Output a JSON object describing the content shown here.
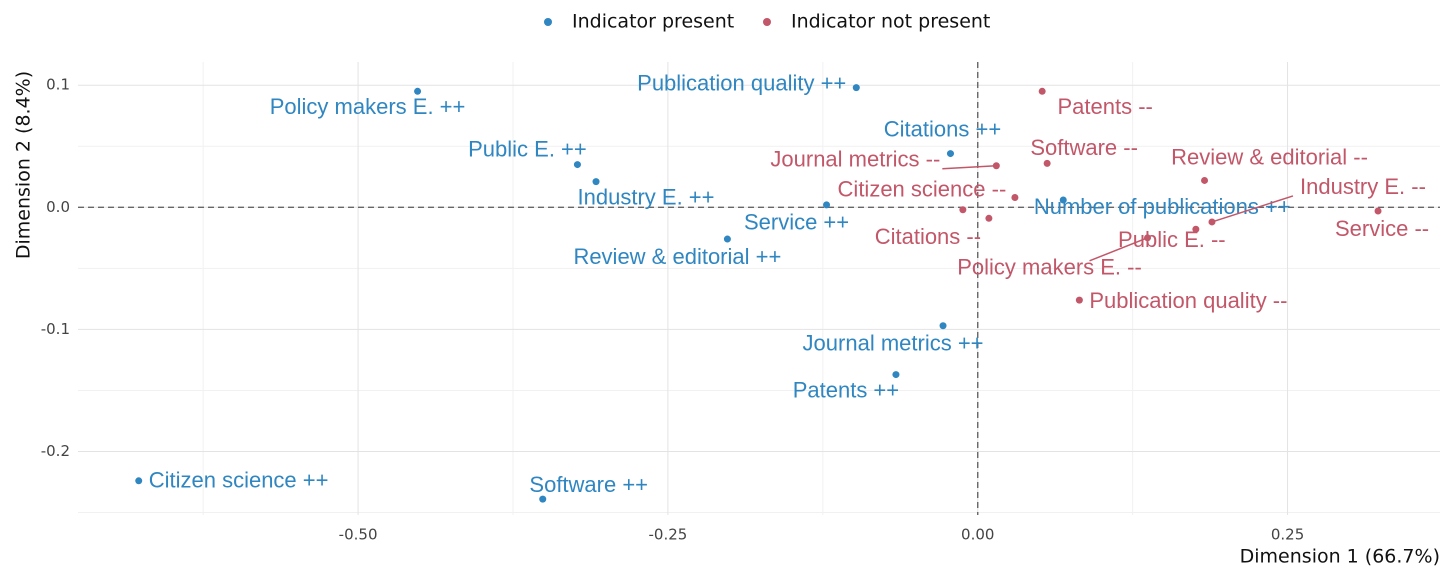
{
  "chart_data": {
    "type": "scatter",
    "x_label": "Dimension 1 (66.7%)",
    "y_label": "Dimension 2 (8.4%)",
    "xlim": [
      -0.726,
      0.373
    ],
    "ylim": [
      -0.252,
      0.119
    ],
    "xticks": [
      {
        "value": -0.5,
        "label": "-0.50"
      },
      {
        "value": -0.25,
        "label": "-0.25"
      },
      {
        "value": 0,
        "label": "0.00"
      },
      {
        "value": 0.25,
        "label": "0.25"
      }
    ],
    "yticks": [
      0.1,
      {
        "value": 0,
        "label": "0.0"
      },
      -0.1,
      -0.2
    ],
    "grid": true,
    "reference_x": 0,
    "reference_y": 0,
    "legend": "top",
    "series": [
      {
        "name": "Indicator present",
        "color": "#2f86c1",
        "labels": [
          "Policy makers E. ++",
          "Publication quality ++",
          "Public E. ++",
          "Industry E. ++",
          "Citations ++",
          "Service ++",
          "Review & editorial ++",
          "Number of publications ++",
          "Journal metrics ++",
          "Patents ++",
          "Citizen science ++",
          "Software ++"
        ],
        "x": [
          -0.452,
          -0.098,
          -0.323,
          -0.308,
          -0.022,
          -0.122,
          -0.202,
          0.069,
          -0.028,
          -0.066,
          -0.677,
          -0.351
        ],
        "values": [
          0.095,
          0.098,
          0.035,
          0.021,
          0.044,
          0.002,
          -0.026,
          0.006,
          -0.097,
          -0.137,
          -0.224,
          -0.239
        ]
      },
      {
        "name": "Indicator not present",
        "color": "#c25769",
        "labels": [
          "Patents --",
          "Software --",
          "Journal metrics --",
          "Review & editorial --",
          "Citizen science --",
          "Citations --",
          null,
          "Industry E. --",
          "Public E. --",
          "Policy makers E. --",
          "Publication quality --",
          "Service --"
        ],
        "x": [
          0.052,
          0.056,
          0.015,
          0.183,
          0.03,
          0.009,
          -0.012,
          0.189,
          0.176,
          0.137,
          0.082,
          0.323
        ],
        "values": [
          0.095,
          0.036,
          0.034,
          0.022,
          0.008,
          -0.009,
          -0.002,
          -0.012,
          -0.018,
          -0.025,
          -0.076,
          -0.003
        ]
      }
    ]
  }
}
